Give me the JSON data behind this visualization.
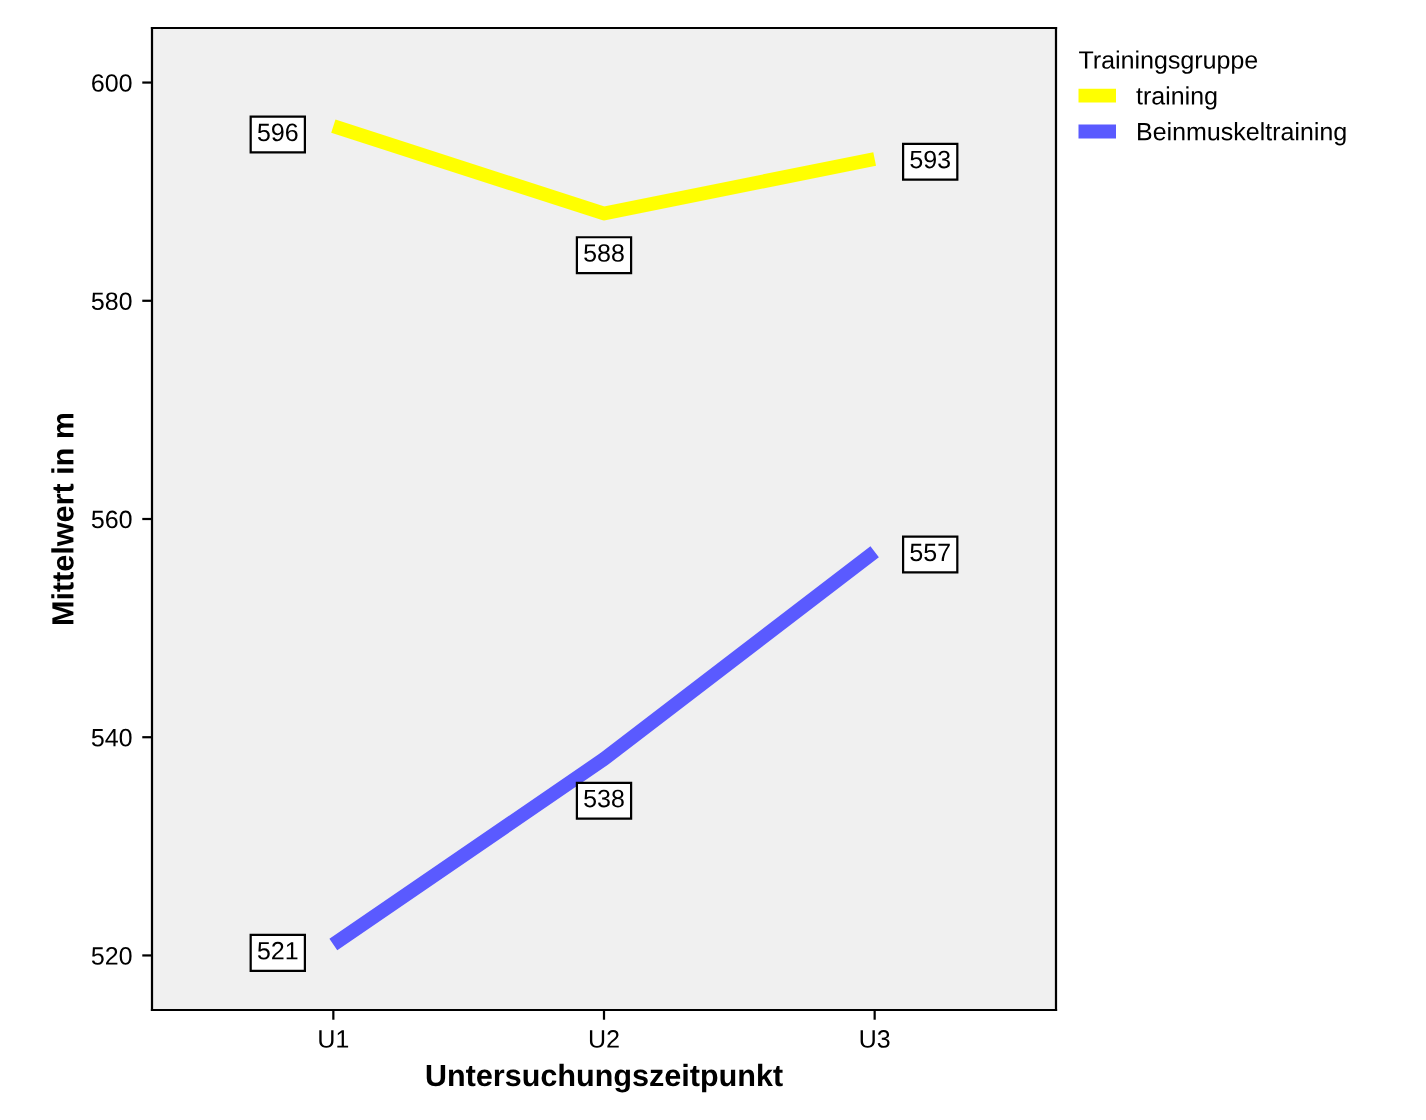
{
  "chart_data": {
    "type": "line",
    "xlabel": "Untersuchungszeitpunkt",
    "ylabel": "Mittelwert in m",
    "legend_title": "Trainingsgruppe",
    "legend": "right",
    "categories": [
      "U1",
      "U2",
      "U3"
    ],
    "series": [
      {
        "name": "training",
        "color": "#ffff00",
        "values": [
          596,
          588,
          593
        ]
      },
      {
        "name": "Beinmuskeltraining",
        "color": "#5a5aff",
        "values": [
          521,
          538,
          557
        ]
      }
    ],
    "ylim": [
      515,
      605
    ],
    "yticks": [
      520,
      540,
      560,
      580,
      600
    ],
    "data_labels": true,
    "grid": false,
    "marker": "none",
    "line_style": "solid"
  }
}
